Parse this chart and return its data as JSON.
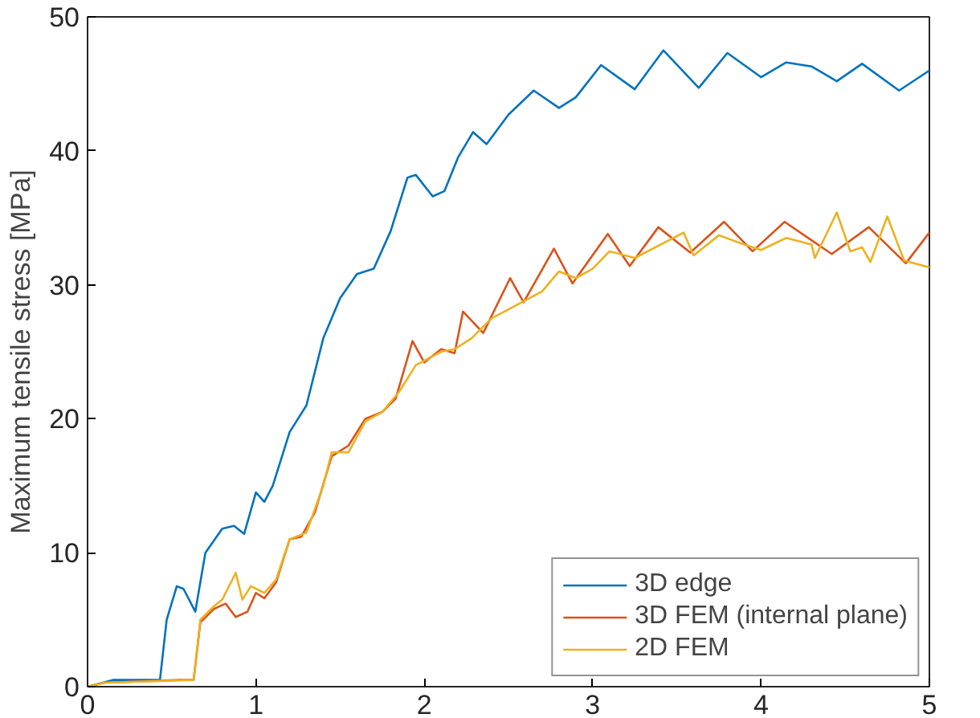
{
  "chart_data": {
    "type": "line",
    "ylabel": "Maximum tensile stress [MPa]",
    "xlim": [
      0,
      5
    ],
    "ylim": [
      0,
      50
    ],
    "xticks": [
      0,
      1,
      2,
      3,
      4,
      5
    ],
    "yticks": [
      0,
      10,
      20,
      30,
      40,
      50
    ],
    "grid": false,
    "legend": "bottom right",
    "line_style": "solid",
    "marker": "none",
    "series": [
      {
        "name": "3D edge",
        "color": "#0072bd",
        "x": [
          0,
          0.15,
          0.43,
          0.47,
          0.53,
          0.57,
          0.64,
          0.7,
          0.8,
          0.87,
          0.93,
          1.0,
          1.05,
          1.1,
          1.2,
          1.3,
          1.4,
          1.5,
          1.6,
          1.7,
          1.8,
          1.9,
          1.95,
          2.05,
          2.12,
          2.2,
          2.29,
          2.37,
          2.5,
          2.65,
          2.8,
          2.9,
          3.05,
          3.25,
          3.42,
          3.63,
          3.8,
          4.0,
          4.15,
          4.3,
          4.45,
          4.6,
          4.82,
          5
        ],
        "values": [
          0,
          0.5,
          0.5,
          5,
          7.5,
          7.3,
          5.6,
          10,
          11.8,
          12,
          11.4,
          14.5,
          13.8,
          15,
          19,
          21,
          26,
          29,
          30.8,
          31.2,
          34,
          38,
          38.2,
          36.6,
          37,
          39.5,
          41.4,
          40.5,
          42.7,
          44.5,
          43.2,
          44,
          46.4,
          44.6,
          47.5,
          44.7,
          47.3,
          45.5,
          46.6,
          46.3,
          45.2,
          46.5,
          44.5,
          46
        ]
      },
      {
        "name": "3D FEM (internal plane)",
        "color": "#d95319",
        "x": [
          0,
          0.1,
          0.55,
          0.63,
          0.67,
          0.75,
          0.82,
          0.88,
          0.95,
          1.0,
          1.05,
          1.12,
          1.2,
          1.27,
          1.35,
          1.45,
          1.55,
          1.65,
          1.75,
          1.83,
          1.93,
          2.0,
          2.1,
          2.18,
          2.23,
          2.35,
          2.51,
          2.59,
          2.77,
          2.88,
          3.09,
          3.22,
          3.39,
          3.58,
          3.78,
          3.95,
          4.14,
          4.42,
          4.64,
          4.86,
          5
        ],
        "values": [
          0,
          0.3,
          0.5,
          0.5,
          4.8,
          5.8,
          6.2,
          5.2,
          5.6,
          7,
          6.6,
          7.8,
          11,
          11.2,
          13,
          17.2,
          18,
          20,
          20.5,
          21.5,
          25.8,
          24.2,
          25.2,
          24.9,
          28,
          26.4,
          30.5,
          28.7,
          32.7,
          30.1,
          33.8,
          31.4,
          34.3,
          32.4,
          34.7,
          32.5,
          34.7,
          32.3,
          34.3,
          31.6,
          33.9
        ]
      },
      {
        "name": "2D FEM",
        "color": "#edb120",
        "x": [
          0,
          0.1,
          0.63,
          0.67,
          0.75,
          0.8,
          0.88,
          0.92,
          0.97,
          1.05,
          1.12,
          1.2,
          1.3,
          1.4,
          1.45,
          1.55,
          1.65,
          1.75,
          1.85,
          1.95,
          2.1,
          2.18,
          2.28,
          2.4,
          2.55,
          2.7,
          2.8,
          2.9,
          3.0,
          3.1,
          3.25,
          3.54,
          3.6,
          3.75,
          3.9,
          4.0,
          4.15,
          4.3,
          4.32,
          4.45,
          4.53,
          4.6,
          4.65,
          4.75,
          4.85,
          5
        ],
        "values": [
          0,
          0.3,
          0.5,
          5,
          6,
          6.5,
          8.5,
          6.5,
          7.5,
          7,
          8,
          11,
          11.5,
          15,
          17.5,
          17.5,
          19.8,
          20.5,
          22,
          24,
          25,
          25.2,
          26,
          27.5,
          28.5,
          29.5,
          31,
          30.5,
          31.2,
          32.5,
          32,
          33.9,
          32.2,
          33.7,
          33,
          32.6,
          33.5,
          33,
          32,
          35.4,
          32.5,
          32.8,
          31.7,
          35.1,
          31.8,
          31.3
        ]
      }
    ]
  }
}
